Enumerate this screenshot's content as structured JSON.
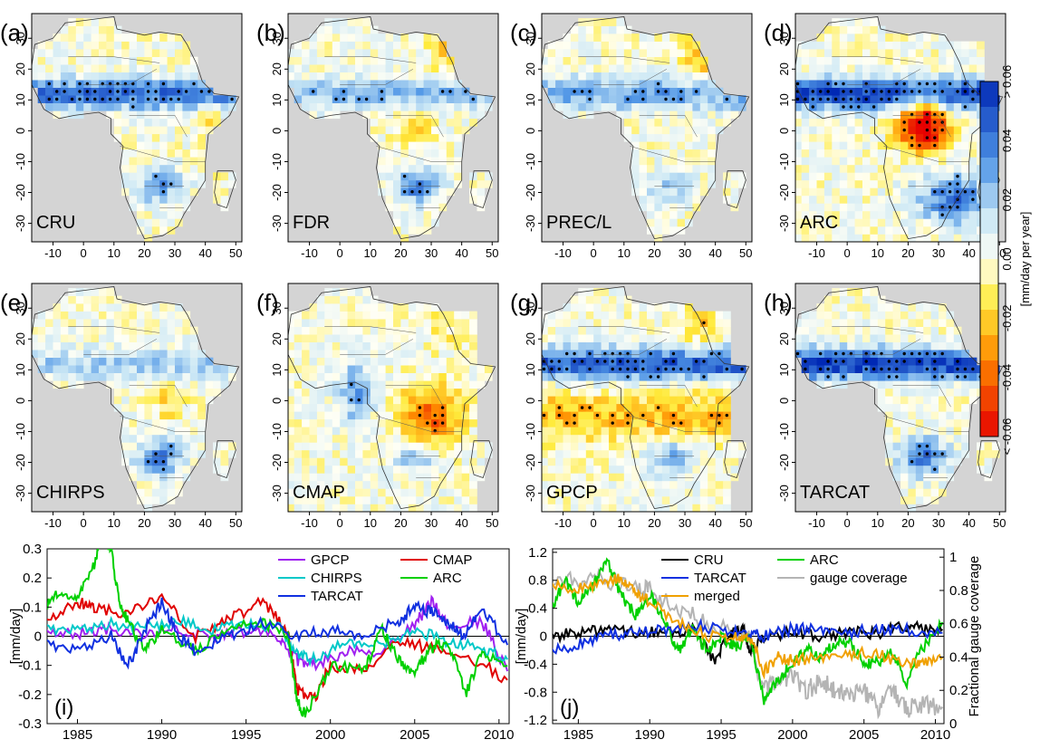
{
  "chart_data": [
    {
      "panel_label": "(a)",
      "map_label": "CRU",
      "type": "heatmap",
      "lon_ticks": [
        "-10",
        "0",
        "10",
        "20",
        "30",
        "40",
        "50"
      ],
      "lat_ticks": [
        "30",
        "20",
        "10",
        "0",
        "-10",
        "-20",
        "-30"
      ]
    },
    {
      "panel_label": "(b)",
      "map_label": "FDR",
      "type": "heatmap",
      "lon_ticks": [
        "-10",
        "0",
        "10",
        "20",
        "30",
        "40",
        "50"
      ],
      "lat_ticks": [
        "30",
        "20",
        "10",
        "0",
        "-10",
        "-20",
        "-30"
      ]
    },
    {
      "panel_label": "(c)",
      "map_label": "PREC/L",
      "type": "heatmap",
      "lon_ticks": [
        "-10",
        "0",
        "10",
        "20",
        "30",
        "40",
        "50"
      ],
      "lat_ticks": [
        "30",
        "20",
        "10",
        "0",
        "-10",
        "-20",
        "-30"
      ]
    },
    {
      "panel_label": "(d)",
      "map_label": "ARC",
      "type": "heatmap",
      "lon_ticks": [
        "-10",
        "0",
        "10",
        "20",
        "30",
        "40",
        "50"
      ],
      "lat_ticks": [
        "30",
        "20",
        "10",
        "0",
        "-10",
        "-20",
        "-30"
      ]
    },
    {
      "panel_label": "(e)",
      "map_label": "CHIRPS",
      "type": "heatmap",
      "lon_ticks": [
        "-10",
        "0",
        "10",
        "20",
        "30",
        "40",
        "50"
      ],
      "lat_ticks": [
        "30",
        "20",
        "10",
        "0",
        "-10",
        "-20",
        "-30"
      ]
    },
    {
      "panel_label": "(f)",
      "map_label": "CMAP",
      "type": "heatmap",
      "lon_ticks": [
        "-10",
        "0",
        "10",
        "20",
        "30",
        "40",
        "50"
      ],
      "lat_ticks": [
        "30",
        "20",
        "10",
        "0",
        "-10",
        "-20",
        "-30"
      ]
    },
    {
      "panel_label": "(g)",
      "map_label": "GPCP",
      "type": "heatmap",
      "lon_ticks": [
        "-10",
        "0",
        "10",
        "20",
        "30",
        "40",
        "50"
      ],
      "lat_ticks": [
        "30",
        "20",
        "10",
        "0",
        "-10",
        "-20",
        "-30"
      ]
    },
    {
      "panel_label": "(h)",
      "map_label": "TARCAT",
      "type": "heatmap",
      "lon_ticks": [
        "-10",
        "0",
        "10",
        "20",
        "30",
        "40",
        "50"
      ],
      "lat_ticks": [
        "30",
        "20",
        "10",
        "0",
        "-10",
        "-20",
        "-30"
      ]
    },
    {
      "panel_label": "(i)",
      "type": "line",
      "ylabel": "[mm/day]",
      "ylim": [
        -0.3,
        0.3
      ],
      "y_ticks": [
        "0.3",
        "0.2",
        "0.1",
        "0",
        "-0.1",
        "-0.2",
        "-0.3"
      ],
      "x_ticks": [
        "1985",
        "1990",
        "1995",
        "2000",
        "2005",
        "2010"
      ],
      "legend": [
        "GPCP",
        "CMAP",
        "CHIRPS",
        "ARC",
        "TARCAT"
      ],
      "series": [
        {
          "name": "GPCP",
          "color": "#a020f0",
          "x": [
            1983,
            1985,
            1987,
            1989,
            1991,
            1993,
            1995,
            1997,
            1998,
            1999,
            2001,
            2003,
            2005,
            2006,
            2007,
            2009,
            2010.5
          ],
          "values": [
            0.02,
            0.01,
            0.03,
            0.0,
            0.02,
            0.0,
            0.02,
            0.0,
            -0.08,
            -0.1,
            -0.05,
            -0.06,
            0.04,
            0.12,
            0.04,
            0.05,
            -0.12
          ]
        },
        {
          "name": "CMAP",
          "color": "#e00000",
          "x": [
            1983,
            1985,
            1986,
            1988,
            1990,
            1992,
            1994,
            1996,
            1997.5,
            1998,
            1999,
            2000,
            2002,
            2004,
            2006,
            2008,
            2010.5
          ],
          "values": [
            0.05,
            0.12,
            0.1,
            0.08,
            0.13,
            0.0,
            0.06,
            0.12,
            0.02,
            -0.18,
            -0.22,
            -0.1,
            -0.12,
            -0.02,
            -0.04,
            -0.06,
            -0.15
          ]
        },
        {
          "name": "CHIRPS",
          "color": "#00c8c8",
          "x": [
            1983,
            1985,
            1987,
            1989,
            1991,
            1993,
            1995,
            1997,
            1998,
            1999,
            2001,
            2003,
            2005,
            2007,
            2009,
            2010.5
          ],
          "values": [
            0.03,
            0.02,
            0.04,
            0.03,
            0.05,
            0.02,
            0.05,
            0.03,
            -0.06,
            -0.08,
            -0.02,
            -0.03,
            0.02,
            -0.02,
            -0.04,
            -0.08
          ]
        },
        {
          "name": "ARC",
          "color": "#00d000",
          "x": [
            1983,
            1984,
            1985,
            1986,
            1986.5,
            1987,
            1987.5,
            1988,
            1989,
            1990,
            1992,
            1994,
            1996,
            1997.5,
            1998,
            1998.5,
            2000,
            2002,
            2003,
            2004,
            2005,
            2006,
            2007,
            2008,
            2009,
            2010.5
          ],
          "values": [
            0.1,
            0.15,
            0.13,
            0.25,
            0.36,
            0.3,
            0.1,
            0.05,
            -0.05,
            0.02,
            -0.05,
            0.03,
            0.05,
            0.0,
            -0.22,
            -0.27,
            -0.1,
            -0.12,
            0.03,
            -0.08,
            -0.12,
            -0.04,
            -0.02,
            -0.2,
            -0.05,
            -0.1
          ]
        },
        {
          "name": "TARCAT",
          "color": "#1030e0",
          "x": [
            1983,
            1985,
            1987,
            1988,
            1989,
            1990,
            1991,
            1992,
            1994,
            1996,
            1998,
            2000,
            2002,
            2004,
            2005,
            2006,
            2007,
            2008,
            2009,
            2010.5
          ],
          "values": [
            -0.02,
            -0.05,
            0.0,
            -0.1,
            0.02,
            0.12,
            0.0,
            -0.05,
            0.0,
            0.05,
            0.0,
            0.02,
            0.0,
            0.05,
            0.1,
            0.08,
            0.05,
            0.0,
            0.1,
            -0.03
          ]
        }
      ]
    },
    {
      "panel_label": "(j)",
      "type": "line",
      "ylabel": "[mm/day]",
      "ylabel_right": "Fractional gauge coverage",
      "ylim": [
        -1.25,
        1.25
      ],
      "ylim_right": [
        0,
        1.05
      ],
      "y_ticks": [
        "1.2",
        "0.8",
        "0.4",
        "0",
        "-0.4",
        "-0.8",
        "-1.2"
      ],
      "y_ticks_right": [
        "1",
        "0.8",
        "0.6",
        "0.4",
        "0.2",
        "0"
      ],
      "x_ticks": [
        "1985",
        "1990",
        "1995",
        "2000",
        "2005",
        "2010"
      ],
      "legend": [
        "CRU",
        "ARC",
        "TARCAT",
        "gauge coverage",
        "merged"
      ],
      "series": [
        {
          "name": "CRU",
          "color": "#000000",
          "axis": "left",
          "x": [
            1983,
            1985,
            1987,
            1989,
            1991,
            1993,
            1994.5,
            1995.5,
            1996.5,
            1997,
            1998,
            2000,
            2002,
            2004,
            2006,
            2008,
            2009,
            2010.5
          ],
          "values": [
            0.0,
            0.05,
            0.1,
            0.05,
            0.05,
            0.1,
            -0.35,
            0.0,
            0.15,
            -0.2,
            0.0,
            0.05,
            0.0,
            0.05,
            0.05,
            0.15,
            0.1,
            0.1
          ]
        },
        {
          "name": "ARC",
          "color": "#00d000",
          "axis": "left",
          "x": [
            1983,
            1984,
            1985,
            1986,
            1987,
            1988,
            1989,
            1990,
            1991,
            1992,
            1993,
            1994,
            1995,
            1996,
            1997,
            1998,
            1999,
            2000,
            2001,
            2002,
            2003,
            2004,
            2005,
            2006,
            2007,
            2008,
            2009,
            2010.5
          ],
          "values": [
            0.3,
            0.8,
            0.5,
            0.7,
            1.1,
            0.6,
            0.3,
            0.6,
            0.2,
            -0.2,
            0.1,
            -0.2,
            0.0,
            -0.15,
            0.0,
            -0.9,
            -0.6,
            -0.4,
            -0.2,
            -0.3,
            -0.1,
            -0.1,
            -0.4,
            -0.35,
            -0.25,
            -0.65,
            -0.2,
            0.2
          ]
        },
        {
          "name": "TARCAT",
          "color": "#1030e0",
          "axis": "left",
          "x": [
            1983,
            1985,
            1987,
            1989,
            1991,
            1993,
            1995,
            1997,
            1998,
            2000,
            2002,
            2004,
            2006,
            2008,
            2010.5
          ],
          "values": [
            -0.25,
            -0.1,
            0.0,
            0.05,
            0.1,
            0.15,
            0.1,
            0.05,
            0.0,
            0.1,
            0.1,
            0.05,
            0.1,
            0.1,
            0.05
          ]
        },
        {
          "name": "merged",
          "color": "#f0a000",
          "axis": "left",
          "x": [
            1983,
            1985,
            1987,
            1988,
            1989,
            1990,
            1992,
            1994,
            1996,
            1997,
            1998,
            1999,
            2000,
            2002,
            2004,
            2006,
            2008,
            2009,
            2010.5
          ],
          "values": [
            0.7,
            0.7,
            0.75,
            0.85,
            0.6,
            0.5,
            0.2,
            0.0,
            0.0,
            0.0,
            -0.5,
            -0.3,
            -0.35,
            -0.3,
            -0.25,
            -0.25,
            -0.4,
            -0.35,
            -0.3
          ]
        },
        {
          "name": "gauge coverage",
          "color": "#b4b4b4",
          "axis": "right",
          "x": [
            1983,
            1985,
            1987,
            1989,
            1990,
            1992,
            1994,
            1996,
            1997,
            1998,
            1999,
            2000,
            2001,
            2002,
            2003,
            2004,
            2005,
            2006,
            2007,
            2008,
            2009,
            2010.5
          ],
          "values": [
            0.85,
            0.85,
            0.87,
            0.82,
            0.8,
            0.7,
            0.6,
            0.55,
            0.5,
            0.2,
            0.25,
            0.3,
            0.2,
            0.25,
            0.2,
            0.18,
            0.2,
            0.1,
            0.2,
            0.08,
            0.12,
            0.1
          ]
        }
      ]
    }
  ],
  "colorbar": {
    "label": "[mm/day per year]",
    "ticks": [
      "> 0.06",
      "0.04",
      "0.02",
      "0.00",
      "-0.02",
      "-0.04",
      "< -0.06"
    ]
  }
}
